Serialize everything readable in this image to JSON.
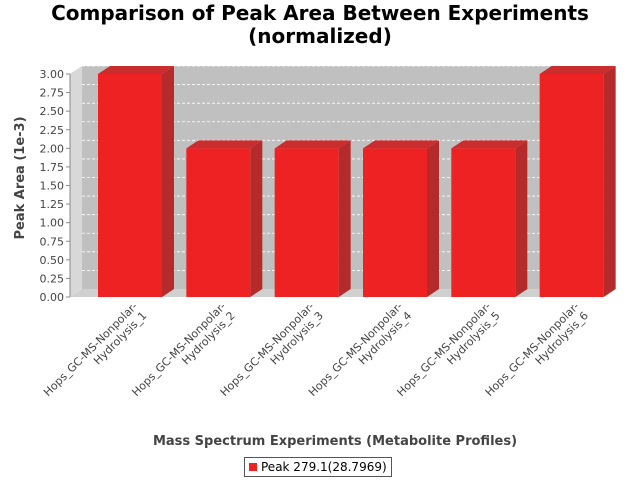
{
  "chart_data": {
    "type": "bar",
    "style": "3d",
    "title_lines": [
      "Comparison of Peak Area Between Experiments",
      "(normalized)"
    ],
    "xlabel": "Mass Spectrum Experiments (Metabolite Profiles)",
    "ylabel": "Peak Area (1e-3)",
    "categories": [
      [
        "Hops_GC-MS-Nonpolar-",
        "Hydrolysis_1"
      ],
      [
        "Hops_GC-MS-Nonpolar-",
        "Hydrolysis_2"
      ],
      [
        "Hops_GC-MS-Nonpolar-",
        "Hydrolysis_3"
      ],
      [
        "Hops_GC-MS-Nonpolar-",
        "Hydrolysis_4"
      ],
      [
        "Hops_GC-MS-Nonpolar-",
        "Hydrolysis_5"
      ],
      [
        "Hops_GC-MS-Nonpolar-",
        "Hydrolysis_6"
      ]
    ],
    "series": [
      {
        "name": "Peak 279.1(28.7969)",
        "values": [
          3.0,
          2.0,
          2.0,
          2.0,
          2.0,
          3.0
        ],
        "color": "#ee2222"
      }
    ],
    "ylim": [
      0,
      3.0
    ],
    "yticks": [
      "0.00",
      "0.25",
      "0.50",
      "0.75",
      "1.00",
      "1.25",
      "1.50",
      "1.75",
      "2.00",
      "2.25",
      "2.50",
      "2.75",
      "3.00"
    ],
    "grid": true,
    "legend": "bottom"
  }
}
